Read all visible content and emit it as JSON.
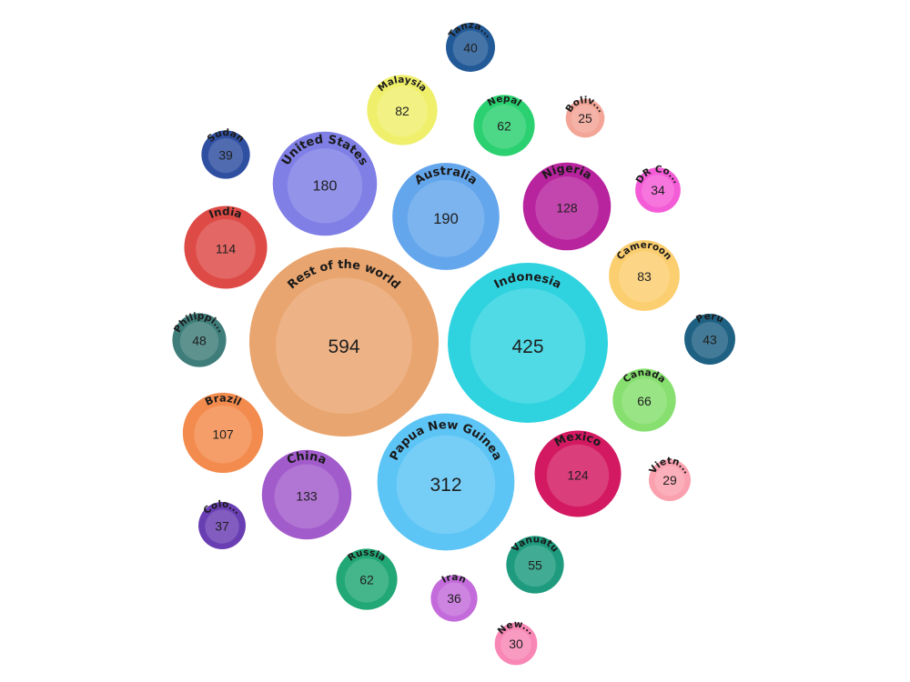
{
  "chart_data": {
    "type": "bubble",
    "title": "",
    "series": [
      {
        "name": "Rest of the world",
        "value": 594,
        "color": "#E9A56F"
      },
      {
        "name": "Indonesia",
        "value": 425,
        "color": "#2FD3E0"
      },
      {
        "name": "Papua New Guinea",
        "value": 312,
        "color": "#5CC5F5"
      },
      {
        "name": "Australia",
        "value": 190,
        "color": "#63A6EC"
      },
      {
        "name": "United States",
        "value": 180,
        "color": "#7F7FE6"
      },
      {
        "name": "China",
        "value": 133,
        "color": "#A25BCB"
      },
      {
        "name": "Nigeria",
        "value": 128,
        "color": "#B8239E"
      },
      {
        "name": "Mexico",
        "value": 124,
        "color": "#D31962"
      },
      {
        "name": "India",
        "value": 114,
        "color": "#DE4A46"
      },
      {
        "name": "Brazil",
        "value": 107,
        "color": "#F38B4E"
      },
      {
        "name": "Cameroon",
        "value": 83,
        "color": "#FBCE6F"
      },
      {
        "name": "Malaysia",
        "value": 82,
        "color": "#EFEF6C"
      },
      {
        "name": "Canada",
        "value": 66,
        "color": "#86DF6E"
      },
      {
        "name": "Nepal",
        "value": 62,
        "color": "#2BD071"
      },
      {
        "name": "Russia",
        "value": 62,
        "color": "#22A876"
      },
      {
        "name": "Vanuatu",
        "value": 55,
        "color": "#1E9B7E"
      },
      {
        "name": "Philippi...",
        "value": 48,
        "color": "#3E7D7A"
      },
      {
        "name": "Peru",
        "value": 43,
        "color": "#1F6183"
      },
      {
        "name": "Tanza...",
        "value": 40,
        "color": "#225A97"
      },
      {
        "name": "Sudan",
        "value": 39,
        "color": "#2F4FA1"
      },
      {
        "name": "Colo...",
        "value": 37,
        "color": "#6A3EB3"
      },
      {
        "name": "Iran",
        "value": 36,
        "color": "#C36BDA"
      },
      {
        "name": "DR Co...",
        "value": 34,
        "color": "#F45CD7"
      },
      {
        "name": "New...",
        "value": 30,
        "color": "#F887B5"
      },
      {
        "name": "Vietn...",
        "value": 29,
        "color": "#FAA0AE"
      },
      {
        "name": "Boliv...",
        "value": 25,
        "color": "#F3A597"
      }
    ]
  }
}
